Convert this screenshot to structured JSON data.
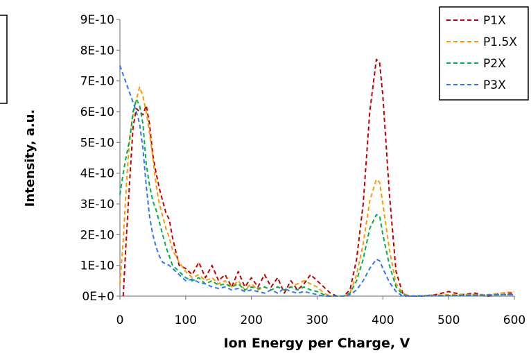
{
  "chart_data": {
    "type": "line",
    "title": "",
    "xlabel": "Ion Energy per Charge, V",
    "ylabel": "Intensity, a.u.",
    "xlim": [
      0,
      600
    ],
    "ylim": [
      0,
      9e-10
    ],
    "x_ticks": [
      "0",
      "100",
      "200",
      "300",
      "400",
      "500",
      "600"
    ],
    "y_ticks": [
      "0E+0",
      "1E-10",
      "2E-10",
      "3E-10",
      "4E-10",
      "5E-10",
      "6E-10",
      "7E-10",
      "8E-10",
      "9E-10"
    ],
    "grid": false,
    "legend_position": "top-right",
    "line_style": "dashed",
    "colors": {
      "P1X": "#c00000",
      "P1.5X": "#ff9900",
      "P2X": "#00b050",
      "P3X": "#2f75ff"
    },
    "series": [
      {
        "name": "P1X",
        "points": [
          [
            5,
            0
          ],
          [
            10,
            2e-10
          ],
          [
            15,
            3.8e-10
          ],
          [
            20,
            5.5e-10
          ],
          [
            25,
            6.1e-10
          ],
          [
            30,
            6e-10
          ],
          [
            35,
            5.9e-10
          ],
          [
            40,
            6.2e-10
          ],
          [
            45,
            5.6e-10
          ],
          [
            50,
            4.6e-10
          ],
          [
            55,
            4e-10
          ],
          [
            60,
            3.5e-10
          ],
          [
            65,
            3.1e-10
          ],
          [
            70,
            2.7e-10
          ],
          [
            75,
            2.5e-10
          ],
          [
            80,
            1.9e-10
          ],
          [
            90,
            1e-10
          ],
          [
            100,
            9e-11
          ],
          [
            110,
            7e-11
          ],
          [
            120,
            1.1e-10
          ],
          [
            130,
            6e-11
          ],
          [
            140,
            1e-10
          ],
          [
            150,
            5e-11
          ],
          [
            160,
            7e-11
          ],
          [
            170,
            3e-11
          ],
          [
            180,
            8e-11
          ],
          [
            190,
            3e-11
          ],
          [
            200,
            6e-11
          ],
          [
            210,
            3e-11
          ],
          [
            220,
            7e-11
          ],
          [
            230,
            3e-11
          ],
          [
            240,
            6e-11
          ],
          [
            250,
            1e-11
          ],
          [
            260,
            5e-11
          ],
          [
            270,
            2e-11
          ],
          [
            280,
            4e-11
          ],
          [
            290,
            7e-11
          ],
          [
            300,
            5e-11
          ],
          [
            310,
            3e-11
          ],
          [
            320,
            1e-11
          ],
          [
            330,
            0.0
          ],
          [
            340,
            0.0
          ],
          [
            350,
            2e-11
          ],
          [
            360,
            1.2e-10
          ],
          [
            370,
            3e-10
          ],
          [
            380,
            6e-10
          ],
          [
            390,
            7.7e-10
          ],
          [
            395,
            7.6e-10
          ],
          [
            400,
            6.5e-10
          ],
          [
            410,
            3.3e-10
          ],
          [
            420,
            8e-11
          ],
          [
            430,
            1e-11
          ],
          [
            440,
            0.0
          ],
          [
            460,
            0.0
          ],
          [
            480,
            5e-12
          ],
          [
            500,
            1.5e-11
          ],
          [
            520,
            5e-12
          ],
          [
            540,
            1e-11
          ],
          [
            560,
            0.0
          ],
          [
            580,
            1e-11
          ],
          [
            600,
            1e-11
          ]
        ]
      },
      {
        "name": "P1.5X",
        "points": [
          [
            0,
            4e-11
          ],
          [
            5,
            1.8e-10
          ],
          [
            10,
            3.7e-10
          ],
          [
            15,
            5.2e-10
          ],
          [
            20,
            5.9e-10
          ],
          [
            25,
            6.4e-10
          ],
          [
            30,
            6.8e-10
          ],
          [
            35,
            6.5e-10
          ],
          [
            40,
            6e-10
          ],
          [
            45,
            5.3e-10
          ],
          [
            50,
            4.5e-10
          ],
          [
            55,
            3.6e-10
          ],
          [
            60,
            3e-10
          ],
          [
            65,
            2.6e-10
          ],
          [
            70,
            2.2e-10
          ],
          [
            75,
            1.9e-10
          ],
          [
            80,
            1.5e-10
          ],
          [
            90,
            1.1e-10
          ],
          [
            100,
            8e-11
          ],
          [
            110,
            6e-11
          ],
          [
            120,
            7e-11
          ],
          [
            130,
            5e-11
          ],
          [
            140,
            6e-11
          ],
          [
            150,
            4e-11
          ],
          [
            160,
            5e-11
          ],
          [
            170,
            3e-11
          ],
          [
            180,
            5e-11
          ],
          [
            190,
            2e-11
          ],
          [
            200,
            4e-11
          ],
          [
            210,
            2e-11
          ],
          [
            220,
            3e-11
          ],
          [
            230,
            2e-11
          ],
          [
            240,
            3e-11
          ],
          [
            250,
            2e-11
          ],
          [
            260,
            3e-11
          ],
          [
            270,
            4e-11
          ],
          [
            280,
            5e-11
          ],
          [
            290,
            4e-11
          ],
          [
            300,
            3e-11
          ],
          [
            310,
            1e-11
          ],
          [
            320,
            0.0
          ],
          [
            340,
            0.0
          ],
          [
            350,
            1e-11
          ],
          [
            360,
            7e-11
          ],
          [
            370,
            1.7e-10
          ],
          [
            380,
            3.1e-10
          ],
          [
            390,
            3.8e-10
          ],
          [
            395,
            3.7e-10
          ],
          [
            400,
            3e-10
          ],
          [
            410,
            1.5e-10
          ],
          [
            420,
            4e-11
          ],
          [
            430,
            1e-11
          ],
          [
            440,
            0.0
          ],
          [
            500,
            5e-12
          ],
          [
            560,
            5e-12
          ],
          [
            600,
            1.5e-11
          ]
        ]
      },
      {
        "name": "P2X",
        "points": [
          [
            0,
            3.3e-10
          ],
          [
            5,
            4e-10
          ],
          [
            10,
            4.6e-10
          ],
          [
            15,
            5.1e-10
          ],
          [
            20,
            6e-10
          ],
          [
            25,
            6.4e-10
          ],
          [
            30,
            6.2e-10
          ],
          [
            35,
            5.6e-10
          ],
          [
            40,
            4.3e-10
          ],
          [
            45,
            3.6e-10
          ],
          [
            50,
            3.1e-10
          ],
          [
            55,
            2.8e-10
          ],
          [
            60,
            2.4e-10
          ],
          [
            65,
            2e-10
          ],
          [
            70,
            1.6e-10
          ],
          [
            75,
            1.3e-10
          ],
          [
            80,
            1e-10
          ],
          [
            90,
            8e-11
          ],
          [
            100,
            6e-11
          ],
          [
            110,
            5e-11
          ],
          [
            120,
            6e-11
          ],
          [
            130,
            4e-11
          ],
          [
            140,
            5e-11
          ],
          [
            150,
            3.5e-11
          ],
          [
            160,
            4e-11
          ],
          [
            170,
            3e-11
          ],
          [
            180,
            4e-11
          ],
          [
            190,
            2e-11
          ],
          [
            200,
            3e-11
          ],
          [
            210,
            2.5e-11
          ],
          [
            220,
            3e-11
          ],
          [
            230,
            2e-11
          ],
          [
            240,
            3e-11
          ],
          [
            250,
            2e-11
          ],
          [
            260,
            3e-11
          ],
          [
            270,
            2e-11
          ],
          [
            280,
            3e-11
          ],
          [
            290,
            2e-11
          ],
          [
            300,
            1.5e-11
          ],
          [
            310,
            5e-12
          ],
          [
            320,
            0.0
          ],
          [
            340,
            0.0
          ],
          [
            350,
            1e-11
          ],
          [
            360,
            5e-11
          ],
          [
            370,
            1.2e-10
          ],
          [
            380,
            2.2e-10
          ],
          [
            390,
            2.65e-10
          ],
          [
            395,
            2.6e-10
          ],
          [
            400,
            2e-10
          ],
          [
            410,
            1e-10
          ],
          [
            420,
            3e-11
          ],
          [
            430,
            5e-12
          ],
          [
            440,
            0.0
          ],
          [
            600,
            5e-12
          ]
        ]
      },
      {
        "name": "P3X",
        "points": [
          [
            0,
            7.5e-10
          ],
          [
            5,
            7.2e-10
          ],
          [
            10,
            6.9e-10
          ],
          [
            15,
            6.6e-10
          ],
          [
            20,
            6.3e-10
          ],
          [
            25,
            6e-10
          ],
          [
            30,
            5.6e-10
          ],
          [
            35,
            4.8e-10
          ],
          [
            40,
            3.6e-10
          ],
          [
            45,
            2.6e-10
          ],
          [
            50,
            2e-10
          ],
          [
            55,
            1.6e-10
          ],
          [
            60,
            1.3e-10
          ],
          [
            65,
            1.1e-10
          ],
          [
            75,
            1e-10
          ],
          [
            80,
            9e-11
          ],
          [
            90,
            7e-11
          ],
          [
            100,
            5e-11
          ],
          [
            110,
            5.5e-11
          ],
          [
            120,
            4.5e-11
          ],
          [
            130,
            4e-11
          ],
          [
            140,
            3e-11
          ],
          [
            150,
            2.5e-11
          ],
          [
            160,
            3e-11
          ],
          [
            170,
            2e-11
          ],
          [
            180,
            2.5e-11
          ],
          [
            190,
            1.5e-11
          ],
          [
            200,
            2e-11
          ],
          [
            210,
            1.5e-11
          ],
          [
            220,
            1e-11
          ],
          [
            230,
            2e-11
          ],
          [
            240,
            1e-11
          ],
          [
            250,
            2.5e-11
          ],
          [
            260,
            1.5e-11
          ],
          [
            270,
            1e-11
          ],
          [
            280,
            1.5e-11
          ],
          [
            290,
            1e-11
          ],
          [
            300,
            5e-12
          ],
          [
            310,
            0.0
          ],
          [
            340,
            0.0
          ],
          [
            350,
            5e-12
          ],
          [
            360,
            2e-11
          ],
          [
            370,
            5e-11
          ],
          [
            380,
            9e-11
          ],
          [
            390,
            1.2e-10
          ],
          [
            395,
            1.15e-10
          ],
          [
            400,
            9e-11
          ],
          [
            410,
            4.5e-11
          ],
          [
            420,
            1.5e-11
          ],
          [
            430,
            0.0
          ],
          [
            600,
            5e-12
          ]
        ]
      }
    ]
  }
}
